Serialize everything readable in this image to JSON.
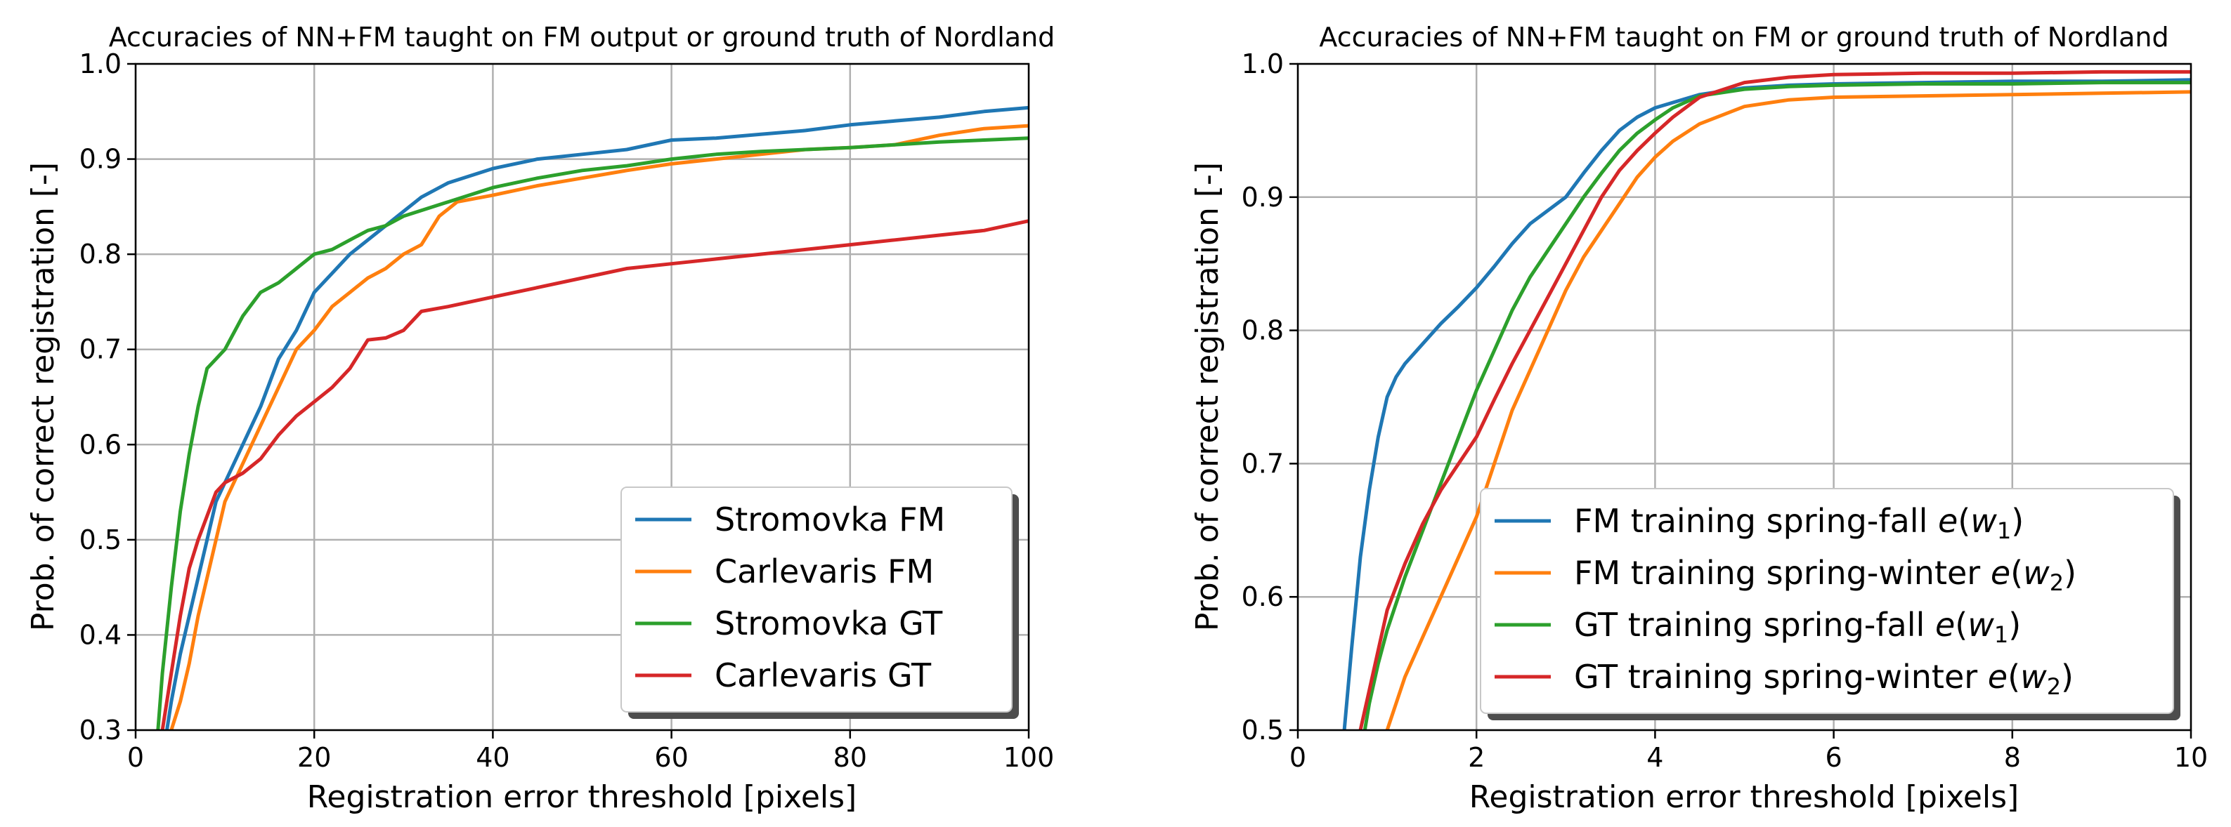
{
  "chart_data": [
    {
      "type": "line",
      "title": "Accuracies of NN+FM taught on FM output or ground truth of Nordland",
      "xlabel": "Registration error threshold [pixels]",
      "ylabel": "Prob. of correct registration [-]",
      "xlim": [
        0,
        100
      ],
      "ylim": [
        0.3,
        1.0
      ],
      "xticks": [
        0,
        20,
        40,
        60,
        80,
        100
      ],
      "yticks": [
        0.3,
        0.4,
        0.5,
        0.6,
        0.7,
        0.8,
        0.9,
        1.0
      ],
      "xtick_labels": [
        "0",
        "20",
        "40",
        "60",
        "80",
        "100"
      ],
      "ytick_labels": [
        "0.3",
        "0.4",
        "0.5",
        "0.6",
        "0.7",
        "0.8",
        "0.9",
        "1.0"
      ],
      "grid": true,
      "legend_position": "bottom-right",
      "series": [
        {
          "name": "Stromovka FM",
          "color": "#1f77b4",
          "x": [
            3.5,
            4,
            5,
            6,
            7,
            8,
            9,
            10,
            12,
            14,
            16,
            18,
            20,
            22,
            24,
            26,
            28,
            30,
            32,
            35,
            40,
            45,
            50,
            55,
            60,
            65,
            70,
            75,
            80,
            85,
            90,
            95,
            100
          ],
          "y": [
            0.3,
            0.33,
            0.38,
            0.42,
            0.46,
            0.5,
            0.54,
            0.56,
            0.6,
            0.64,
            0.69,
            0.72,
            0.76,
            0.78,
            0.8,
            0.815,
            0.83,
            0.845,
            0.86,
            0.875,
            0.89,
            0.9,
            0.905,
            0.91,
            0.92,
            0.922,
            0.926,
            0.93,
            0.936,
            0.94,
            0.944,
            0.95,
            0.954
          ]
        },
        {
          "name": "Carlevaris FM",
          "color": "#ff7f0e",
          "x": [
            4,
            5,
            6,
            7,
            8,
            9,
            10,
            12,
            14,
            16,
            18,
            20,
            22,
            24,
            26,
            28,
            30,
            32,
            34,
            36,
            40,
            45,
            50,
            55,
            60,
            65,
            70,
            75,
            80,
            85,
            90,
            95,
            100
          ],
          "y": [
            0.3,
            0.33,
            0.37,
            0.42,
            0.46,
            0.5,
            0.54,
            0.58,
            0.62,
            0.66,
            0.7,
            0.72,
            0.745,
            0.76,
            0.775,
            0.785,
            0.8,
            0.81,
            0.84,
            0.855,
            0.862,
            0.872,
            0.88,
            0.888,
            0.895,
            0.9,
            0.905,
            0.91,
            0.912,
            0.915,
            0.925,
            0.932,
            0.935
          ]
        },
        {
          "name": "Stromovka GT",
          "color": "#2ca02c",
          "x": [
            2.5,
            3,
            4,
            5,
            6,
            7,
            8,
            9,
            10,
            12,
            14,
            16,
            18,
            20,
            22,
            24,
            26,
            28,
            30,
            35,
            40,
            45,
            50,
            55,
            60,
            65,
            70,
            75,
            80,
            85,
            90,
            95,
            100
          ],
          "y": [
            0.3,
            0.36,
            0.45,
            0.53,
            0.59,
            0.64,
            0.68,
            0.69,
            0.7,
            0.735,
            0.76,
            0.77,
            0.785,
            0.8,
            0.805,
            0.815,
            0.825,
            0.83,
            0.84,
            0.855,
            0.87,
            0.88,
            0.888,
            0.893,
            0.9,
            0.905,
            0.908,
            0.91,
            0.912,
            0.915,
            0.918,
            0.92,
            0.922
          ]
        },
        {
          "name": "Carlevaris GT",
          "color": "#d62728",
          "x": [
            3,
            4,
            5,
            6,
            7,
            8,
            9,
            10,
            12,
            14,
            16,
            18,
            20,
            22,
            24,
            26,
            28,
            30,
            32,
            35,
            40,
            45,
            50,
            55,
            60,
            65,
            70,
            75,
            80,
            85,
            90,
            95,
            100
          ],
          "y": [
            0.3,
            0.36,
            0.42,
            0.47,
            0.5,
            0.525,
            0.55,
            0.56,
            0.57,
            0.585,
            0.61,
            0.63,
            0.645,
            0.66,
            0.68,
            0.71,
            0.712,
            0.72,
            0.74,
            0.745,
            0.755,
            0.765,
            0.775,
            0.785,
            0.79,
            0.795,
            0.8,
            0.805,
            0.81,
            0.815,
            0.82,
            0.825,
            0.835
          ]
        }
      ]
    },
    {
      "type": "line",
      "title": "Accuracies of NN+FM taught on FM or ground truth of Nordland",
      "xlabel": "Registration error threshold [pixels]",
      "ylabel": "Prob. of correct registration [-]",
      "xlim": [
        0,
        10
      ],
      "ylim": [
        0.5,
        1.0
      ],
      "xticks": [
        0,
        2,
        4,
        6,
        8,
        10
      ],
      "yticks": [
        0.5,
        0.6,
        0.7,
        0.8,
        0.9,
        1.0
      ],
      "xtick_labels": [
        "0",
        "2",
        "4",
        "6",
        "8",
        "10"
      ],
      "ytick_labels": [
        "0.5",
        "0.6",
        "0.7",
        "0.8",
        "0.9",
        "1.0"
      ],
      "grid": true,
      "legend_position": "bottom-right",
      "series": [
        {
          "name": "FM training spring-fall e(w1)",
          "legend_main": "FM training spring-fall ",
          "legend_sub": "1",
          "color": "#1f77b4",
          "x": [
            0.52,
            0.6,
            0.7,
            0.8,
            0.9,
            1.0,
            1.1,
            1.2,
            1.4,
            1.6,
            1.8,
            2.0,
            2.2,
            2.4,
            2.6,
            2.8,
            3.0,
            3.2,
            3.4,
            3.6,
            3.8,
            4.0,
            4.5,
            5.0,
            5.5,
            6.0,
            7.0,
            8.0,
            9.0,
            10.0
          ],
          "y": [
            0.5,
            0.56,
            0.63,
            0.68,
            0.72,
            0.75,
            0.765,
            0.775,
            0.79,
            0.805,
            0.818,
            0.832,
            0.848,
            0.865,
            0.88,
            0.89,
            0.9,
            0.918,
            0.935,
            0.95,
            0.96,
            0.967,
            0.977,
            0.982,
            0.984,
            0.985,
            0.986,
            0.987,
            0.987,
            0.988
          ]
        },
        {
          "name": "FM training spring-winter e(w2)",
          "legend_main": "FM training spring-winter ",
          "legend_sub": "2",
          "color": "#ff7f0e",
          "x": [
            1.0,
            1.1,
            1.2,
            1.4,
            1.6,
            1.8,
            2.0,
            2.2,
            2.4,
            2.6,
            2.8,
            3.0,
            3.2,
            3.4,
            3.6,
            3.8,
            4.0,
            4.2,
            4.5,
            5.0,
            5.5,
            6.0,
            7.0,
            8.0,
            9.0,
            10.0
          ],
          "y": [
            0.5,
            0.52,
            0.54,
            0.57,
            0.6,
            0.63,
            0.66,
            0.7,
            0.74,
            0.77,
            0.8,
            0.83,
            0.855,
            0.875,
            0.895,
            0.915,
            0.93,
            0.942,
            0.955,
            0.968,
            0.973,
            0.975,
            0.976,
            0.977,
            0.978,
            0.979
          ]
        },
        {
          "name": "GT training spring-fall e(w1)",
          "legend_main": "GT training spring-fall ",
          "legend_sub": "1",
          "color": "#2ca02c",
          "x": [
            0.75,
            0.8,
            0.9,
            1.0,
            1.2,
            1.4,
            1.6,
            1.8,
            2.0,
            2.2,
            2.4,
            2.6,
            2.8,
            3.0,
            3.2,
            3.4,
            3.6,
            3.8,
            4.0,
            4.2,
            4.5,
            5.0,
            5.5,
            6.0,
            7.0,
            8.0,
            9.0,
            10.0
          ],
          "y": [
            0.5,
            0.52,
            0.55,
            0.575,
            0.615,
            0.65,
            0.685,
            0.72,
            0.755,
            0.785,
            0.815,
            0.84,
            0.86,
            0.88,
            0.9,
            0.918,
            0.935,
            0.948,
            0.958,
            0.967,
            0.976,
            0.981,
            0.983,
            0.984,
            0.985,
            0.985,
            0.986,
            0.986
          ]
        },
        {
          "name": "GT training spring-winter e(w2)",
          "legend_main": "GT training spring-winter ",
          "legend_sub": "2",
          "color": "#d62728",
          "x": [
            0.7,
            0.8,
            0.9,
            1.0,
            1.2,
            1.4,
            1.6,
            1.8,
            2.0,
            2.2,
            2.4,
            2.6,
            2.8,
            3.0,
            3.2,
            3.4,
            3.6,
            3.8,
            4.0,
            4.2,
            4.5,
            5.0,
            5.5,
            6.0,
            7.0,
            8.0,
            9.0,
            10.0
          ],
          "y": [
            0.5,
            0.53,
            0.56,
            0.59,
            0.625,
            0.655,
            0.68,
            0.7,
            0.72,
            0.748,
            0.775,
            0.8,
            0.825,
            0.85,
            0.875,
            0.9,
            0.92,
            0.935,
            0.948,
            0.96,
            0.975,
            0.986,
            0.99,
            0.992,
            0.993,
            0.993,
            0.994,
            0.994
          ]
        }
      ]
    }
  ]
}
